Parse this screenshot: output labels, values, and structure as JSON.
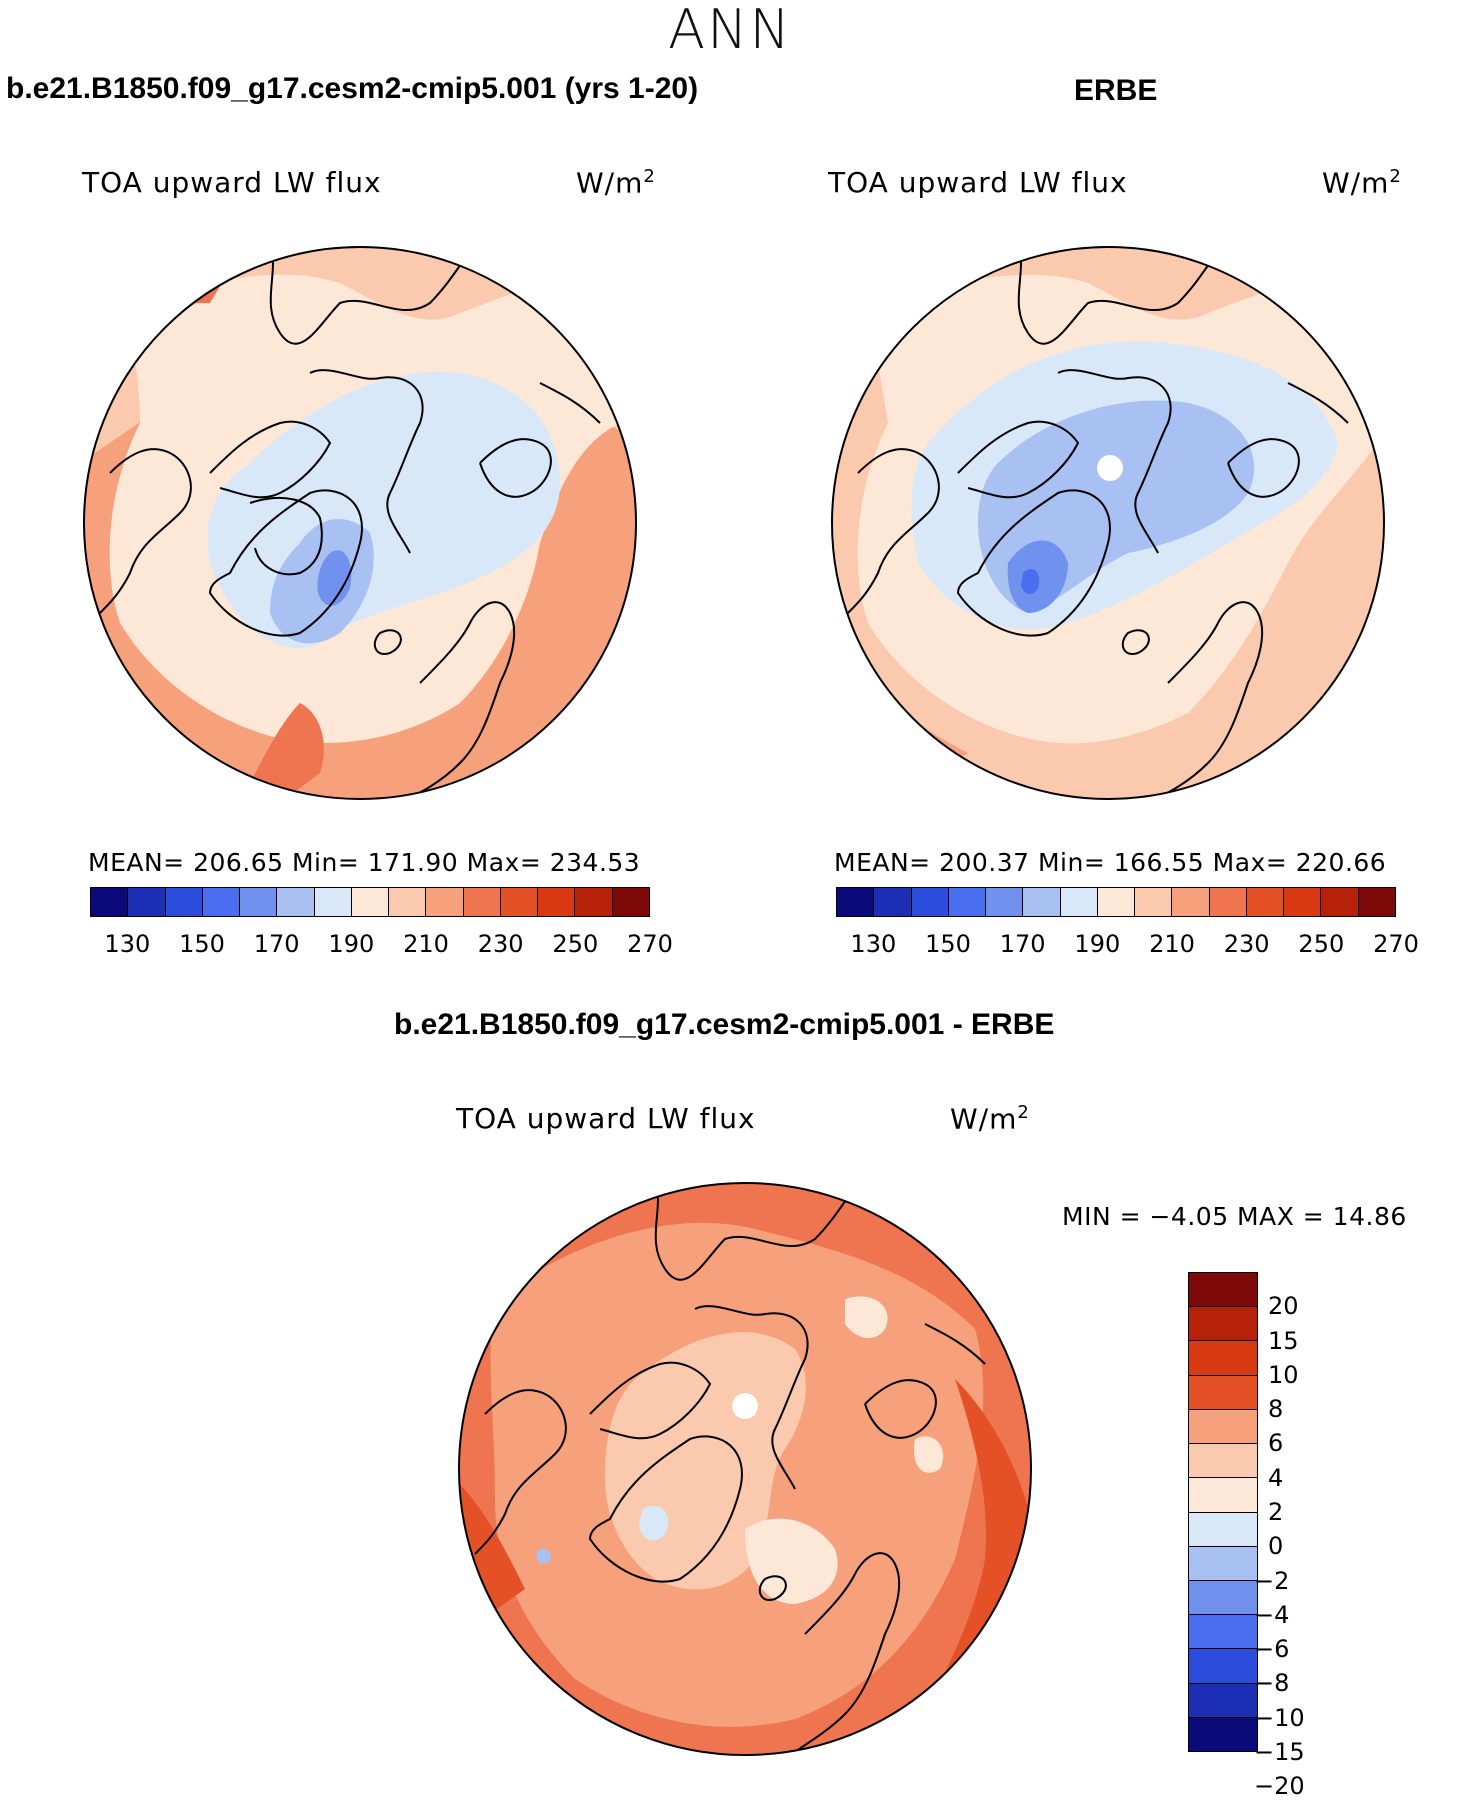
{
  "figure_title": "ANN",
  "colors": {
    "abs_scale": [
      "#0a0a7a",
      "#1c2eb4",
      "#2b4ddb",
      "#4a6ef0",
      "#7091ee",
      "#a8c0f2",
      "#d9e8f8",
      "#fde7d6",
      "#fbc9ad",
      "#f6a07c",
      "#ef7550",
      "#e55127",
      "#d83812",
      "#b52209",
      "#7e0909"
    ],
    "diff_scale": [
      "#7e0909",
      "#b52209",
      "#d83812",
      "#e55127",
      "#f6a07c",
      "#fbc9ad",
      "#fde7d6",
      "#d9e8f8",
      "#a8c0f2",
      "#7091ee",
      "#4a6ef0",
      "#2b4ddb",
      "#1c2eb4",
      "#0a0a7a"
    ]
  },
  "panels": {
    "model": {
      "case_title": "b.e21.B1850.f09_g17.cesm2-cmip5.001 (yrs 1-20)",
      "variable": "TOA upward LW flux",
      "units": "W/m",
      "units_exp": "2",
      "stats": "MEAN= 206.65   Min= 171.90   Max= 234.53",
      "colorbar_ticks": [
        "130",
        "150",
        "170",
        "190",
        "210",
        "230",
        "250",
        "270"
      ]
    },
    "obs": {
      "case_title": "ERBE",
      "variable": "TOA upward LW flux",
      "units": "W/m",
      "units_exp": "2",
      "stats": "MEAN= 200.37   Min= 166.55   Max= 220.66",
      "colorbar_ticks": [
        "130",
        "150",
        "170",
        "190",
        "210",
        "230",
        "250",
        "270"
      ]
    },
    "diff": {
      "case_title": "b.e21.B1850.f09_g17.cesm2-cmip5.001 - ERBE",
      "variable": "TOA upward LW flux",
      "units": "W/m",
      "units_exp": "2",
      "stats": "MIN =   −4.05  MAX =   14.86",
      "colorbar_ticks": [
        "20",
        "15",
        "10",
        "8",
        "6",
        "4",
        "2",
        "0",
        "−2",
        "−4",
        "−6",
        "−8",
        "−10",
        "−15",
        "−20"
      ]
    }
  }
}
